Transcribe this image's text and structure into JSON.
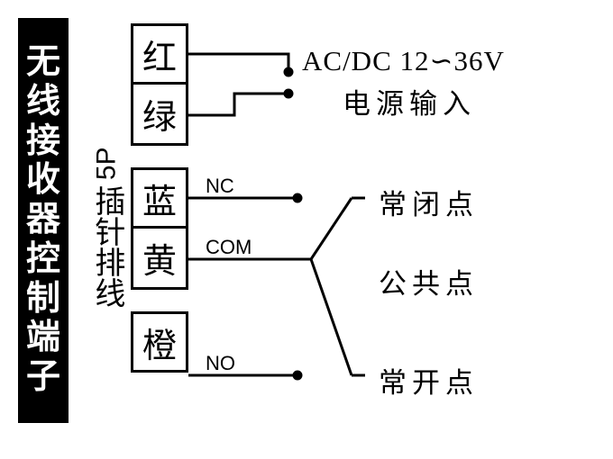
{
  "title": "无线接收器控制端子",
  "connector_label_num": "5P",
  "connector_label_txt": "插针排线",
  "pins": {
    "p1": "红",
    "p2": "绿",
    "p3": "蓝",
    "p4": "黄",
    "p5": "橙"
  },
  "signals": {
    "nc": "NC",
    "com": "COM",
    "no": "NO"
  },
  "right": {
    "power1": "AC/DC 12∽36V",
    "power2": "电源输入",
    "nc": "常闭点",
    "com": "公共点",
    "no": "常开点"
  },
  "style": {
    "line_color": "#000000",
    "line_width": 3,
    "dot_radius": 4,
    "bg": "#ffffff"
  }
}
